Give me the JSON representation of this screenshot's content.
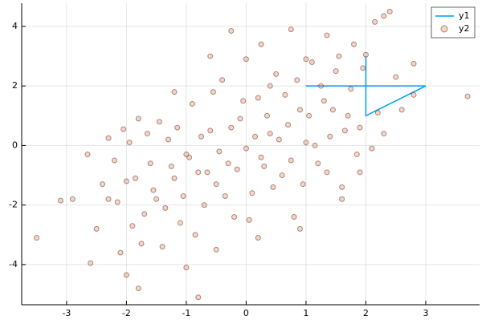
{
  "chart_data": {
    "type": "line_scatter",
    "xlim": [
      -3.75,
      3.9
    ],
    "ylim": [
      -5.35,
      4.78
    ],
    "xticks": [
      -3,
      -2,
      -1,
      0,
      1,
      2,
      3
    ],
    "yticks": [
      -4,
      -2,
      0,
      2,
      4
    ],
    "grid": true,
    "legend": "top-right",
    "series": [
      {
        "name": "y1",
        "type": "line",
        "color": "#009af9",
        "x": [
          1,
          3,
          2,
          2
        ],
        "values": [
          2,
          2,
          1,
          3
        ]
      },
      {
        "name": "y2",
        "type": "scatter",
        "color": "#e26f46",
        "x": [
          -3.5,
          -3.1,
          -2.9,
          -2.6,
          -2.65,
          -2.4,
          -2.3,
          -2.05,
          -2,
          -1.8,
          -0.8,
          3.7,
          2.4,
          2.3,
          2.15,
          2.0,
          2.8,
          2.8,
          -0.25,
          0.75,
          0.25,
          1.35,
          -2.2,
          -2.0,
          -1.9,
          -1.8,
          -1.7,
          -1.6,
          -1.5,
          -1.4,
          -1.3,
          -1.2,
          -1.1,
          -1.0,
          -0.9,
          -0.8,
          -0.7,
          -0.6,
          -0.5,
          -0.4,
          -0.3,
          -0.2,
          -0.1,
          0,
          0.1,
          0.2,
          0.3,
          0.4,
          0.5,
          0.6,
          0.7,
          0.8,
          0.9,
          1.0,
          1.1,
          1.2,
          1.3,
          1.4,
          1.5,
          1.6,
          1.7,
          1.8,
          1.9,
          -2.15,
          -1.95,
          -1.85,
          -1.75,
          -1.65,
          -1.55,
          -1.45,
          -1.35,
          -1.25,
          -1.15,
          -1.05,
          -0.95,
          -0.85,
          -0.75,
          -0.65,
          -0.55,
          -0.45,
          -0.35,
          -0.25,
          -0.15,
          -0.05,
          0.05,
          0.15,
          0.25,
          0.35,
          0.45,
          0.55,
          0.65,
          0.75,
          0.85,
          0.95,
          1.05,
          1.15,
          1.25,
          1.35,
          1.45,
          1.55,
          1.65,
          1.75,
          1.85,
          1.95,
          2.2,
          2.3,
          2.5,
          2.6,
          1.9,
          2.1,
          -2.5,
          -2.3,
          -2.1,
          -1.0,
          -0.5,
          0.2,
          0.9,
          1.6,
          -0.6,
          -1.2,
          0.0,
          0.4,
          1.0
        ],
        "values": [
          -3.1,
          -1.85,
          -1.8,
          -3.95,
          -0.3,
          -1.3,
          0.25,
          0.55,
          -4.35,
          -4.8,
          -5.1,
          1.65,
          4.5,
          4.35,
          4.15,
          3.05,
          2.75,
          1.7,
          3.85,
          3.9,
          3.4,
          3.7,
          -0.5,
          -1.2,
          -2.7,
          0.9,
          -2.3,
          -0.6,
          -1.8,
          -3.4,
          0.2,
          -1.1,
          -2.6,
          -0.3,
          1.4,
          -0.9,
          -2.0,
          0.5,
          -1.3,
          2.2,
          -0.6,
          -2.4,
          0.9,
          -0.1,
          -1.6,
          1.6,
          -0.7,
          0.4,
          2.4,
          -1.0,
          0.7,
          -2.4,
          1.2,
          0.1,
          2.8,
          -0.6,
          1.5,
          0.3,
          2.5,
          -1.4,
          1.0,
          3.4,
          0.6,
          -1.9,
          0.1,
          -1.1,
          -3.3,
          0.4,
          -1.5,
          0.8,
          -2.1,
          -0.7,
          0.6,
          -1.7,
          -0.4,
          -3.0,
          0.3,
          -0.9,
          1.8,
          -0.2,
          -1.7,
          0.6,
          -0.8,
          1.5,
          -2.5,
          0.3,
          -0.4,
          1.0,
          -1.4,
          0.2,
          1.7,
          -0.5,
          2.2,
          -1.3,
          1.0,
          0.0,
          2.0,
          -0.9,
          1.2,
          3.0,
          0.5,
          1.9,
          -0.3,
          2.6,
          1.1,
          0.4,
          2.3,
          1.2,
          -0.9,
          -0.1,
          -2.8,
          -1.8,
          -3.6,
          -4.1,
          -3.5,
          -3.1,
          -2.8,
          -1.8,
          3.0,
          1.8,
          2.9,
          2.0,
          2.9
        ]
      }
    ]
  }
}
